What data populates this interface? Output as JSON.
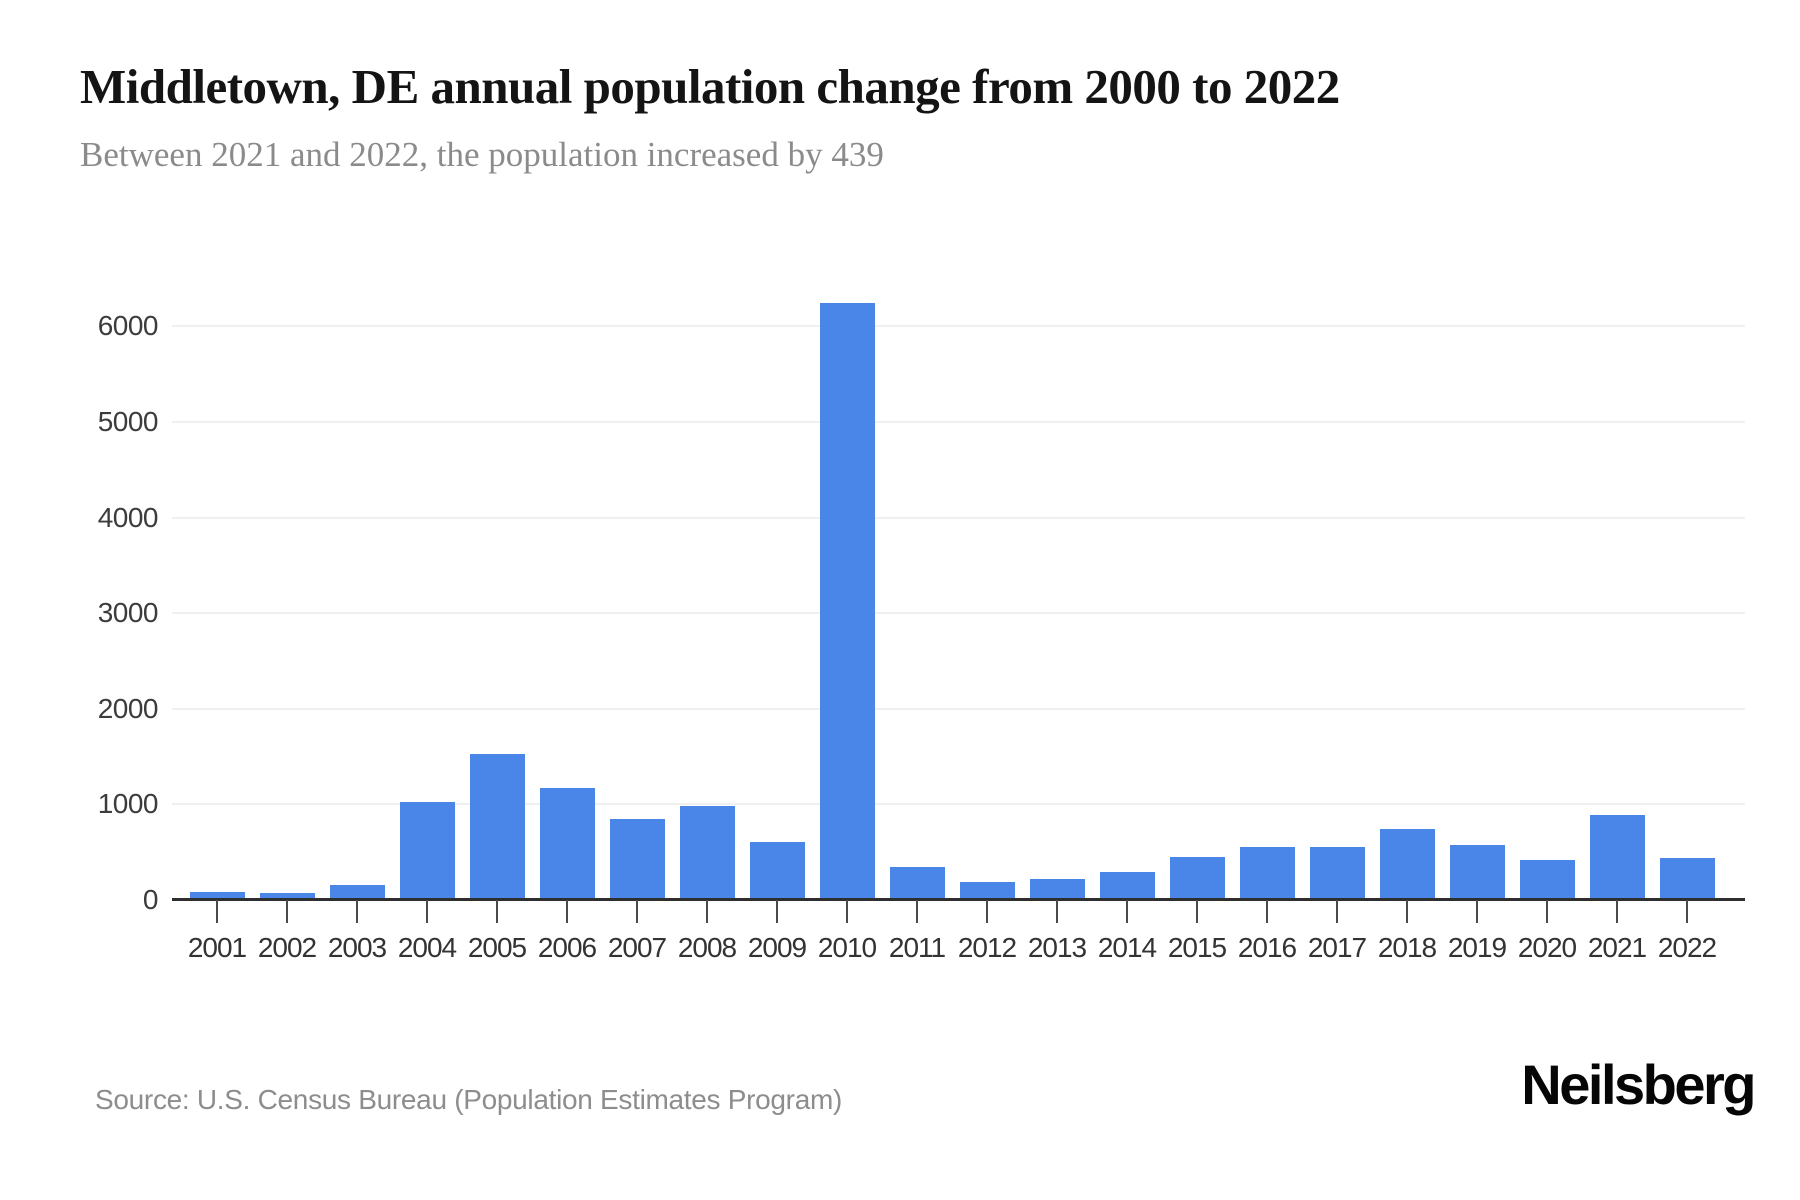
{
  "header": {
    "title": "Middletown, DE annual population change from 2000 to 2022",
    "subtitle": "Between 2021 and 2022, the population increased by 439"
  },
  "footer": {
    "source": "Source: U.S. Census Bureau (Population Estimates Program)",
    "logo": "Neilsberg"
  },
  "chart_data": {
    "type": "bar",
    "title": "Middletown, DE annual population change from 2000 to 2022",
    "subtitle": "Between 2021 and 2022, the population increased by 439",
    "categories": [
      "2001",
      "2002",
      "2003",
      "2004",
      "2005",
      "2006",
      "2007",
      "2008",
      "2009",
      "2010",
      "2011",
      "2012",
      "2013",
      "2014",
      "2015",
      "2016",
      "2017",
      "2018",
      "2019",
      "2020",
      "2021",
      "2022"
    ],
    "values": [
      85,
      75,
      160,
      1030,
      1530,
      1170,
      845,
      980,
      610,
      6250,
      345,
      190,
      220,
      295,
      450,
      550,
      550,
      740,
      575,
      420,
      885,
      439
    ],
    "xlabel": "",
    "ylabel": "",
    "yticks": [
      0,
      1000,
      2000,
      3000,
      4000,
      5000,
      6000
    ],
    "ylim": [
      0,
      6800
    ],
    "grid": "horizontal",
    "legend": "none",
    "bar_color": "#4a86e8"
  }
}
